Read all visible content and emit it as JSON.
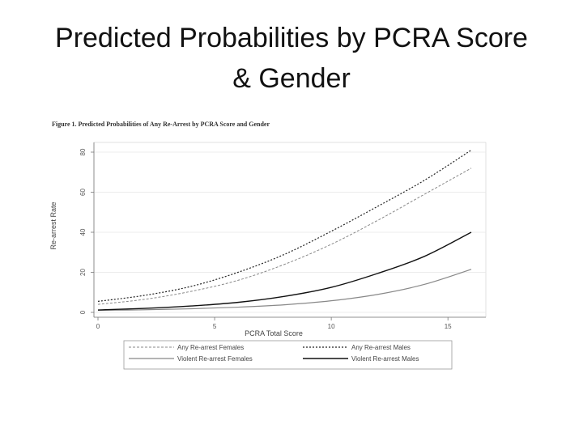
{
  "slide": {
    "title_line1": "Predicted Probabilities by PCRA Score",
    "title_line2": "& Gender"
  },
  "figure": {
    "caption": "Figure 1.  Predicted Probabilities of Any Re-Arrest by PCRA Score and Gender"
  },
  "chart_data": {
    "type": "line",
    "xlabel": "PCRA Total Score",
    "ylabel": "Re-arrest Rate",
    "xlim": [
      0,
      16
    ],
    "ylim": [
      0,
      80
    ],
    "x_ticks": [
      0,
      5,
      10,
      15
    ],
    "y_ticks": [
      0,
      20,
      40,
      60,
      80
    ],
    "grid": true,
    "legend_position": "bottom",
    "x": [
      0,
      2,
      4,
      6,
      8,
      10,
      12,
      14,
      16
    ],
    "series": [
      {
        "name": "Any Re-arrest Females",
        "values": [
          4,
          6.5,
          10.5,
          16,
          24,
          34,
          46,
          59,
          72
        ],
        "color": "#888888",
        "dash": "3,2",
        "width": 1
      },
      {
        "name": "Any Re-arrest Males",
        "values": [
          5.5,
          8.5,
          13,
          20,
          29,
          40.5,
          53,
          66,
          81
        ],
        "color": "#222222",
        "dash": "2,2",
        "width": 1.2
      },
      {
        "name": "Violent Re-arrest Females",
        "values": [
          1,
          1.3,
          1.8,
          2.6,
          3.8,
          5.8,
          9,
          14,
          21.5
        ],
        "color": "#888888",
        "dash": "",
        "width": 1.2
      },
      {
        "name": "Violent Re-arrest Males",
        "values": [
          1.2,
          2,
          3.2,
          5,
          8,
          12.5,
          19.5,
          28,
          40
        ],
        "color": "#111111",
        "dash": "",
        "width": 1.4
      }
    ]
  }
}
